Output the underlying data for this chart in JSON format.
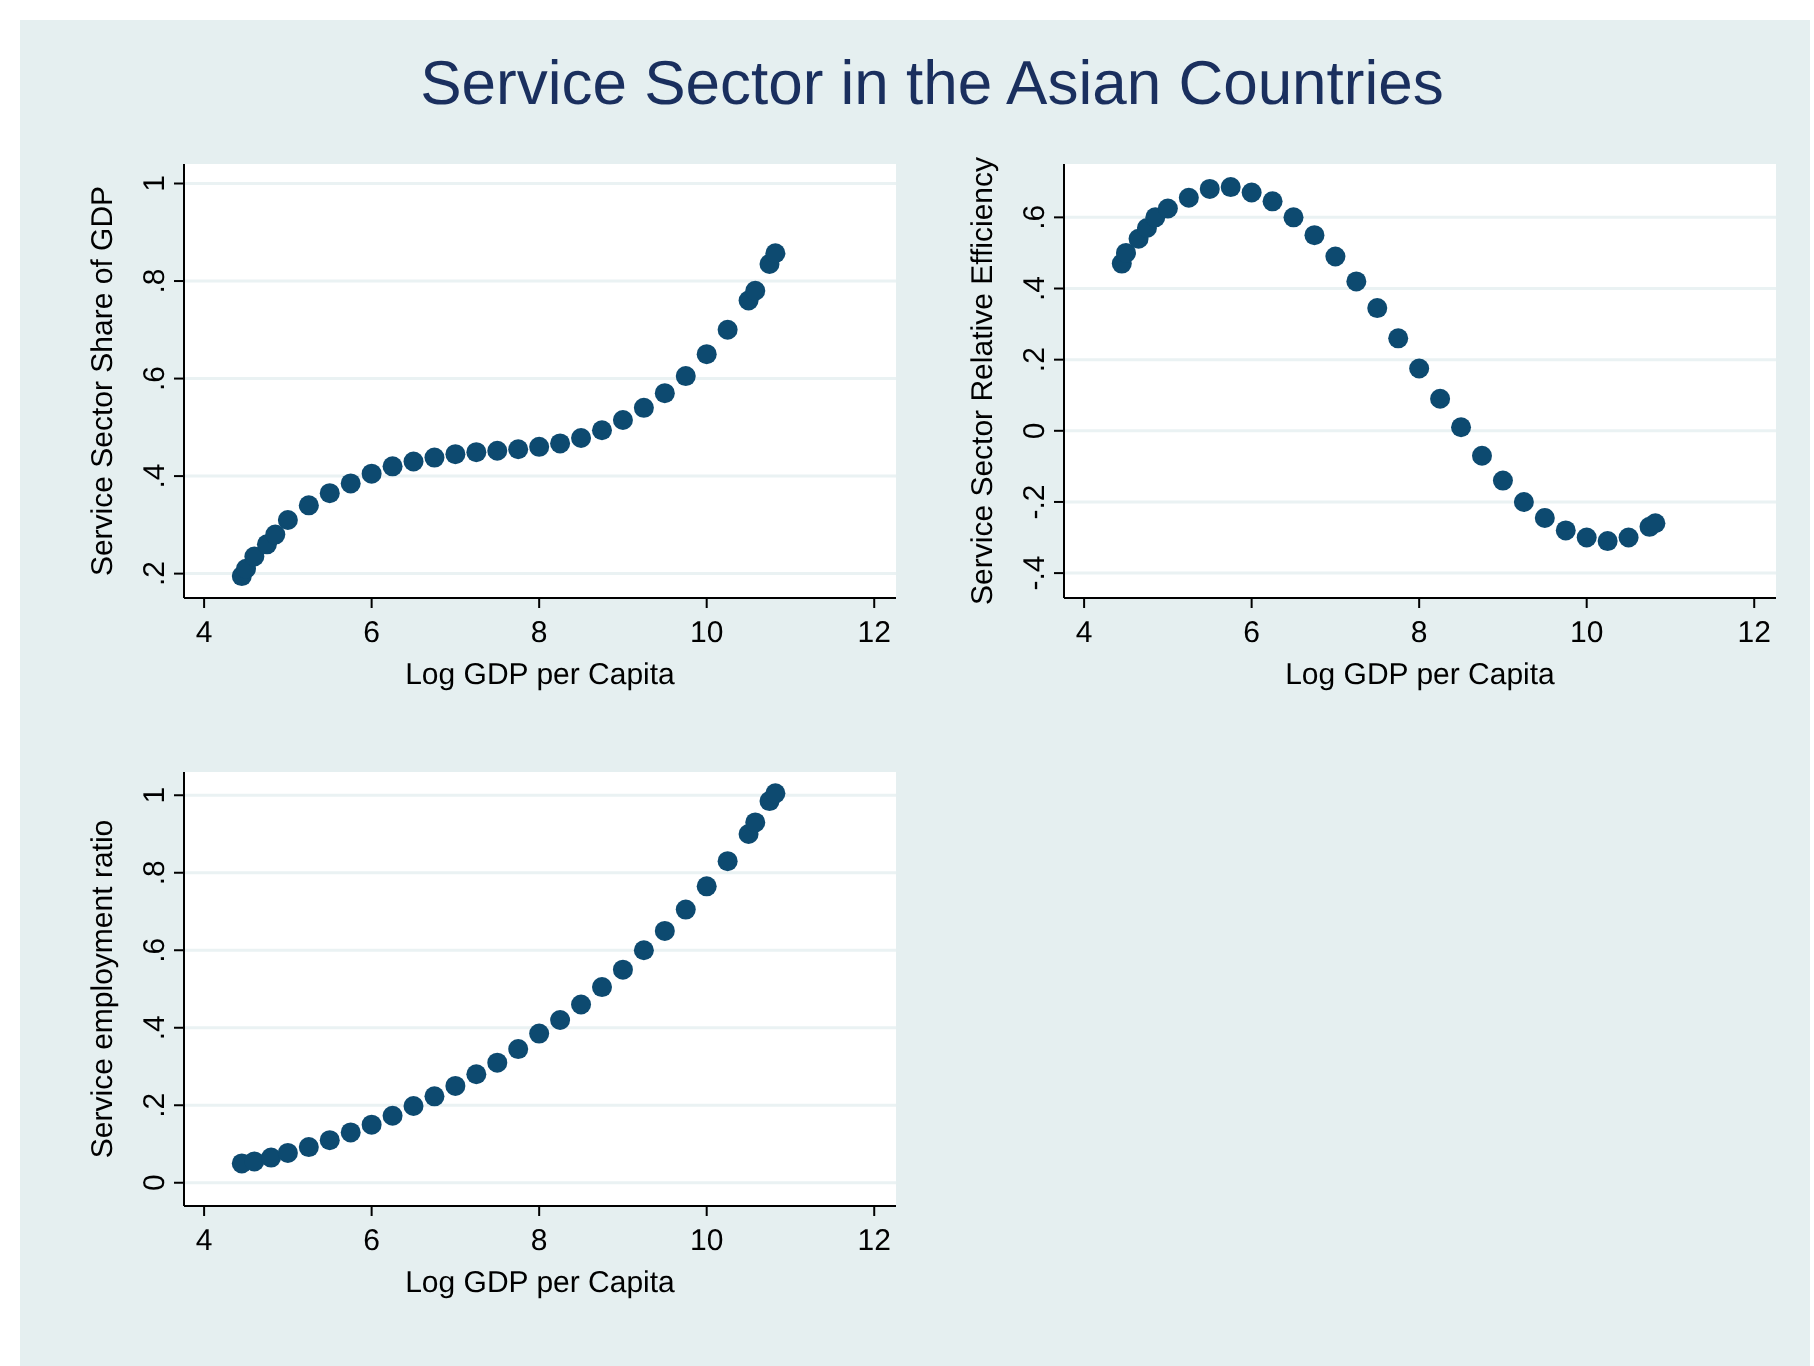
{
  "chart_data": [
    {
      "type": "scatter",
      "title": "Service Sector in the Asian Countries",
      "xlabel": "Log GDP per Capita",
      "ylabel": "Service Sector Share of GDP",
      "xlim": [
        3.76,
        12.26
      ],
      "ylim": [
        0.15,
        1.04
      ],
      "xticks": [
        4,
        6,
        8,
        10,
        12
      ],
      "yticks": [
        {
          "value": 0.2,
          "label": ".2"
        },
        {
          "value": 0.4,
          "label": ".4"
        },
        {
          "value": 0.6,
          "label": ".6"
        },
        {
          "value": 0.8,
          "label": ".8"
        },
        {
          "value": 1,
          "label": "1"
        }
      ],
      "grid": "y",
      "marker": "circle",
      "series": [
        {
          "color": "#0d4a70",
          "x": [
            4.45,
            4.5,
            4.6,
            4.75,
            4.85,
            5,
            5.25,
            5.5,
            5.75,
            6,
            6.25,
            6.5,
            6.75,
            7,
            7.25,
            7.5,
            7.75,
            8,
            8.25,
            8.5,
            8.75,
            9,
            9.25,
            9.5,
            9.75,
            10,
            10.25,
            10.5,
            10.58,
            10.75,
            10.82
          ],
          "values": [
            0.195,
            0.21,
            0.235,
            0.26,
            0.28,
            0.31,
            0.34,
            0.365,
            0.385,
            0.405,
            0.42,
            0.43,
            0.438,
            0.445,
            0.449,
            0.452,
            0.455,
            0.46,
            0.467,
            0.478,
            0.494,
            0.515,
            0.54,
            0.57,
            0.605,
            0.65,
            0.7,
            0.76,
            0.78,
            0.835,
            0.857
          ]
        }
      ]
    },
    {
      "type": "scatter",
      "xlabel": "Log GDP per Capita",
      "ylabel": "Service Sector Relative Efficiency",
      "xlim": [
        3.76,
        12.26
      ],
      "ylim": [
        -0.47,
        0.75
      ],
      "xticks": [
        4,
        6,
        8,
        10,
        12
      ],
      "yticks": [
        {
          "value": -0.4,
          "label": "-.4"
        },
        {
          "value": -0.2,
          "label": "-.2"
        },
        {
          "value": 0,
          "label": "0"
        },
        {
          "value": 0.2,
          "label": ".2"
        },
        {
          "value": 0.4,
          "label": ".4"
        },
        {
          "value": 0.6,
          "label": ".6"
        }
      ],
      "grid": "y",
      "marker": "circle",
      "series": [
        {
          "color": "#0d4a70",
          "x": [
            4.45,
            4.5,
            4.65,
            4.75,
            4.85,
            5,
            5.25,
            5.5,
            5.75,
            6,
            6.25,
            6.5,
            6.75,
            7,
            7.25,
            7.5,
            7.75,
            8,
            8.25,
            8.5,
            8.75,
            9,
            9.25,
            9.5,
            9.75,
            10,
            10.25,
            10.5,
            10.75,
            10.82
          ],
          "values": [
            0.47,
            0.5,
            0.54,
            0.57,
            0.6,
            0.625,
            0.655,
            0.68,
            0.685,
            0.67,
            0.645,
            0.6,
            0.55,
            0.49,
            0.42,
            0.345,
            0.26,
            0.175,
            0.09,
            0.01,
            -0.07,
            -0.14,
            -0.2,
            -0.245,
            -0.28,
            -0.3,
            -0.31,
            -0.3,
            -0.27,
            -0.26
          ]
        }
      ]
    },
    {
      "type": "scatter",
      "xlabel": "Log GDP per Capita",
      "ylabel": "Service employment ratio",
      "xlim": [
        3.76,
        12.26
      ],
      "ylim": [
        -0.06,
        1.06
      ],
      "xticks": [
        4,
        6,
        8,
        10,
        12
      ],
      "yticks": [
        {
          "value": 0,
          "label": "0"
        },
        {
          "value": 0.2,
          "label": ".2"
        },
        {
          "value": 0.4,
          "label": ".4"
        },
        {
          "value": 0.6,
          "label": ".6"
        },
        {
          "value": 0.8,
          "label": ".8"
        },
        {
          "value": 1,
          "label": "1"
        }
      ],
      "grid": "y",
      "marker": "circle",
      "series": [
        {
          "color": "#0d4a70",
          "x": [
            4.45,
            4.6,
            4.8,
            5,
            5.25,
            5.5,
            5.75,
            6,
            6.25,
            6.5,
            6.75,
            7,
            7.25,
            7.5,
            7.75,
            8,
            8.25,
            8.5,
            8.75,
            9,
            9.25,
            9.5,
            9.75,
            10,
            10.25,
            10.5,
            10.58,
            10.75,
            10.82
          ],
          "values": [
            0.05,
            0.055,
            0.065,
            0.077,
            0.092,
            0.11,
            0.13,
            0.15,
            0.173,
            0.198,
            0.223,
            0.25,
            0.28,
            0.31,
            0.345,
            0.385,
            0.42,
            0.46,
            0.505,
            0.55,
            0.6,
            0.65,
            0.705,
            0.765,
            0.83,
            0.9,
            0.93,
            0.985,
            1.005
          ]
        }
      ]
    }
  ]
}
